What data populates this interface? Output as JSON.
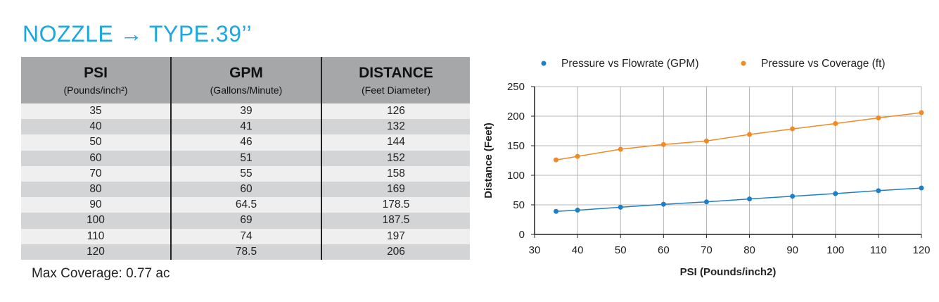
{
  "title": "NOZZLE → TYPE.39’’",
  "table": {
    "headers": [
      {
        "main": "PSI",
        "sub": "(Pounds/inch²)"
      },
      {
        "main": "GPM",
        "sub": "(Gallons/Minute)"
      },
      {
        "main": "DISTANCE",
        "sub": "(Feet Diameter)"
      }
    ],
    "rows": [
      [
        "35",
        "39",
        "126"
      ],
      [
        "40",
        "41",
        "132"
      ],
      [
        "50",
        "46",
        "144"
      ],
      [
        "60",
        "51",
        "152"
      ],
      [
        "70",
        "55",
        "158"
      ],
      [
        "80",
        "60",
        "169"
      ],
      [
        "90",
        "64.5",
        "178.5"
      ],
      [
        "100",
        "69",
        "187.5"
      ],
      [
        "110",
        "74",
        "197"
      ],
      [
        "120",
        "78.5",
        "206"
      ]
    ]
  },
  "max_coverage": "Max Coverage: 0.77 ac",
  "chart_data": {
    "type": "line",
    "xlabel": "PSI (Pounds/inch2)",
    "ylabel": "Distance (Feet)",
    "xlim": [
      30,
      120
    ],
    "ylim": [
      0,
      250
    ],
    "xticks": [
      30,
      40,
      50,
      60,
      70,
      80,
      90,
      100,
      110,
      120
    ],
    "yticks": [
      0,
      50,
      100,
      150,
      200,
      250
    ],
    "grid": true,
    "legend_position": "top",
    "x": [
      35,
      40,
      50,
      60,
      70,
      80,
      90,
      100,
      110,
      120
    ],
    "series": [
      {
        "name": "Pressure vs Flowrate (GPM)",
        "color": "#1f7fc6",
        "values": [
          39,
          41,
          46,
          51,
          55,
          60,
          64.5,
          69,
          74,
          78.5
        ]
      },
      {
        "name": "Pressure vs Coverage (ft)",
        "color": "#f08a24",
        "values": [
          126,
          132,
          144,
          152,
          158,
          169,
          178.5,
          187.5,
          197,
          206
        ]
      }
    ]
  }
}
